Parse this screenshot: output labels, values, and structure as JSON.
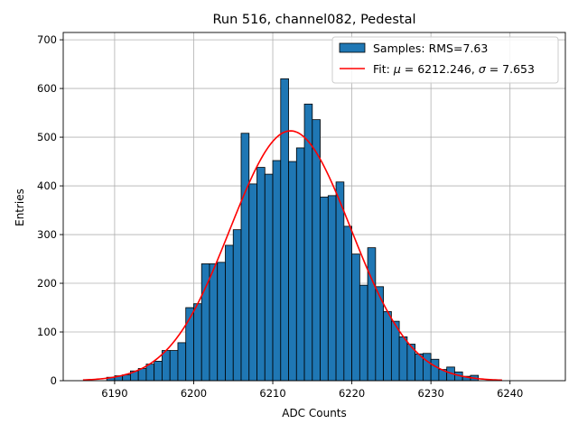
{
  "chart_data": {
    "type": "bar",
    "title": "Run 516, channel082, Pedestal",
    "xlabel": "ADC Counts",
    "ylabel": "Entries",
    "xlim": [
      6183.5,
      6247
    ],
    "ylim": [
      0,
      715
    ],
    "xticks": [
      6190,
      6200,
      6210,
      6220,
      6230,
      6240
    ],
    "yticks": [
      0,
      100,
      200,
      300,
      400,
      500,
      600,
      700
    ],
    "grid": true,
    "legend_position": "top-right",
    "colors": {
      "bars": "#1f77b4",
      "bar_edge": "#000000",
      "fit": "#ff0000",
      "grid": "#b0b0b0"
    },
    "histogram": {
      "name": "Samples: RMS=7.63",
      "bin_width": 1,
      "bin_lefts": [
        6189,
        6190,
        6191,
        6192,
        6193,
        6194,
        6195,
        6196,
        6197,
        6198,
        6199,
        6200,
        6201,
        6202,
        6203,
        6204,
        6205,
        6206,
        6207,
        6208,
        6209,
        6210,
        6211,
        6212,
        6213,
        6214,
        6215,
        6216,
        6217,
        6218,
        6219,
        6220,
        6221,
        6222,
        6223,
        6224,
        6225,
        6226,
        6227,
        6228,
        6229,
        6230,
        6231,
        6232,
        6233,
        6234,
        6235
      ],
      "counts": [
        7,
        10,
        12,
        20,
        25,
        34,
        40,
        62,
        62,
        78,
        150,
        158,
        240,
        240,
        243,
        278,
        310,
        508,
        404,
        438,
        424,
        452,
        620,
        450,
        478,
        568,
        536,
        377,
        380,
        408,
        317,
        260,
        196,
        273,
        193,
        142,
        122,
        90,
        75,
        55,
        56,
        44,
        23,
        28,
        18,
        9,
        11
      ]
    },
    "fit": {
      "name": "Fit: μ = 6212.246, σ = 7.653",
      "mu": 6212.246,
      "sigma": 7.653,
      "amplitude": 513,
      "x_range": [
        6186,
        6239
      ]
    },
    "legend": {
      "samples_label": "Samples: RMS=7.63",
      "fit_label_prefix": "Fit: ",
      "fit_mu_symbol": "μ",
      "fit_mu_value": " = 6212.246, ",
      "fit_sigma_symbol": "σ",
      "fit_sigma_value": " = 7.653"
    }
  }
}
